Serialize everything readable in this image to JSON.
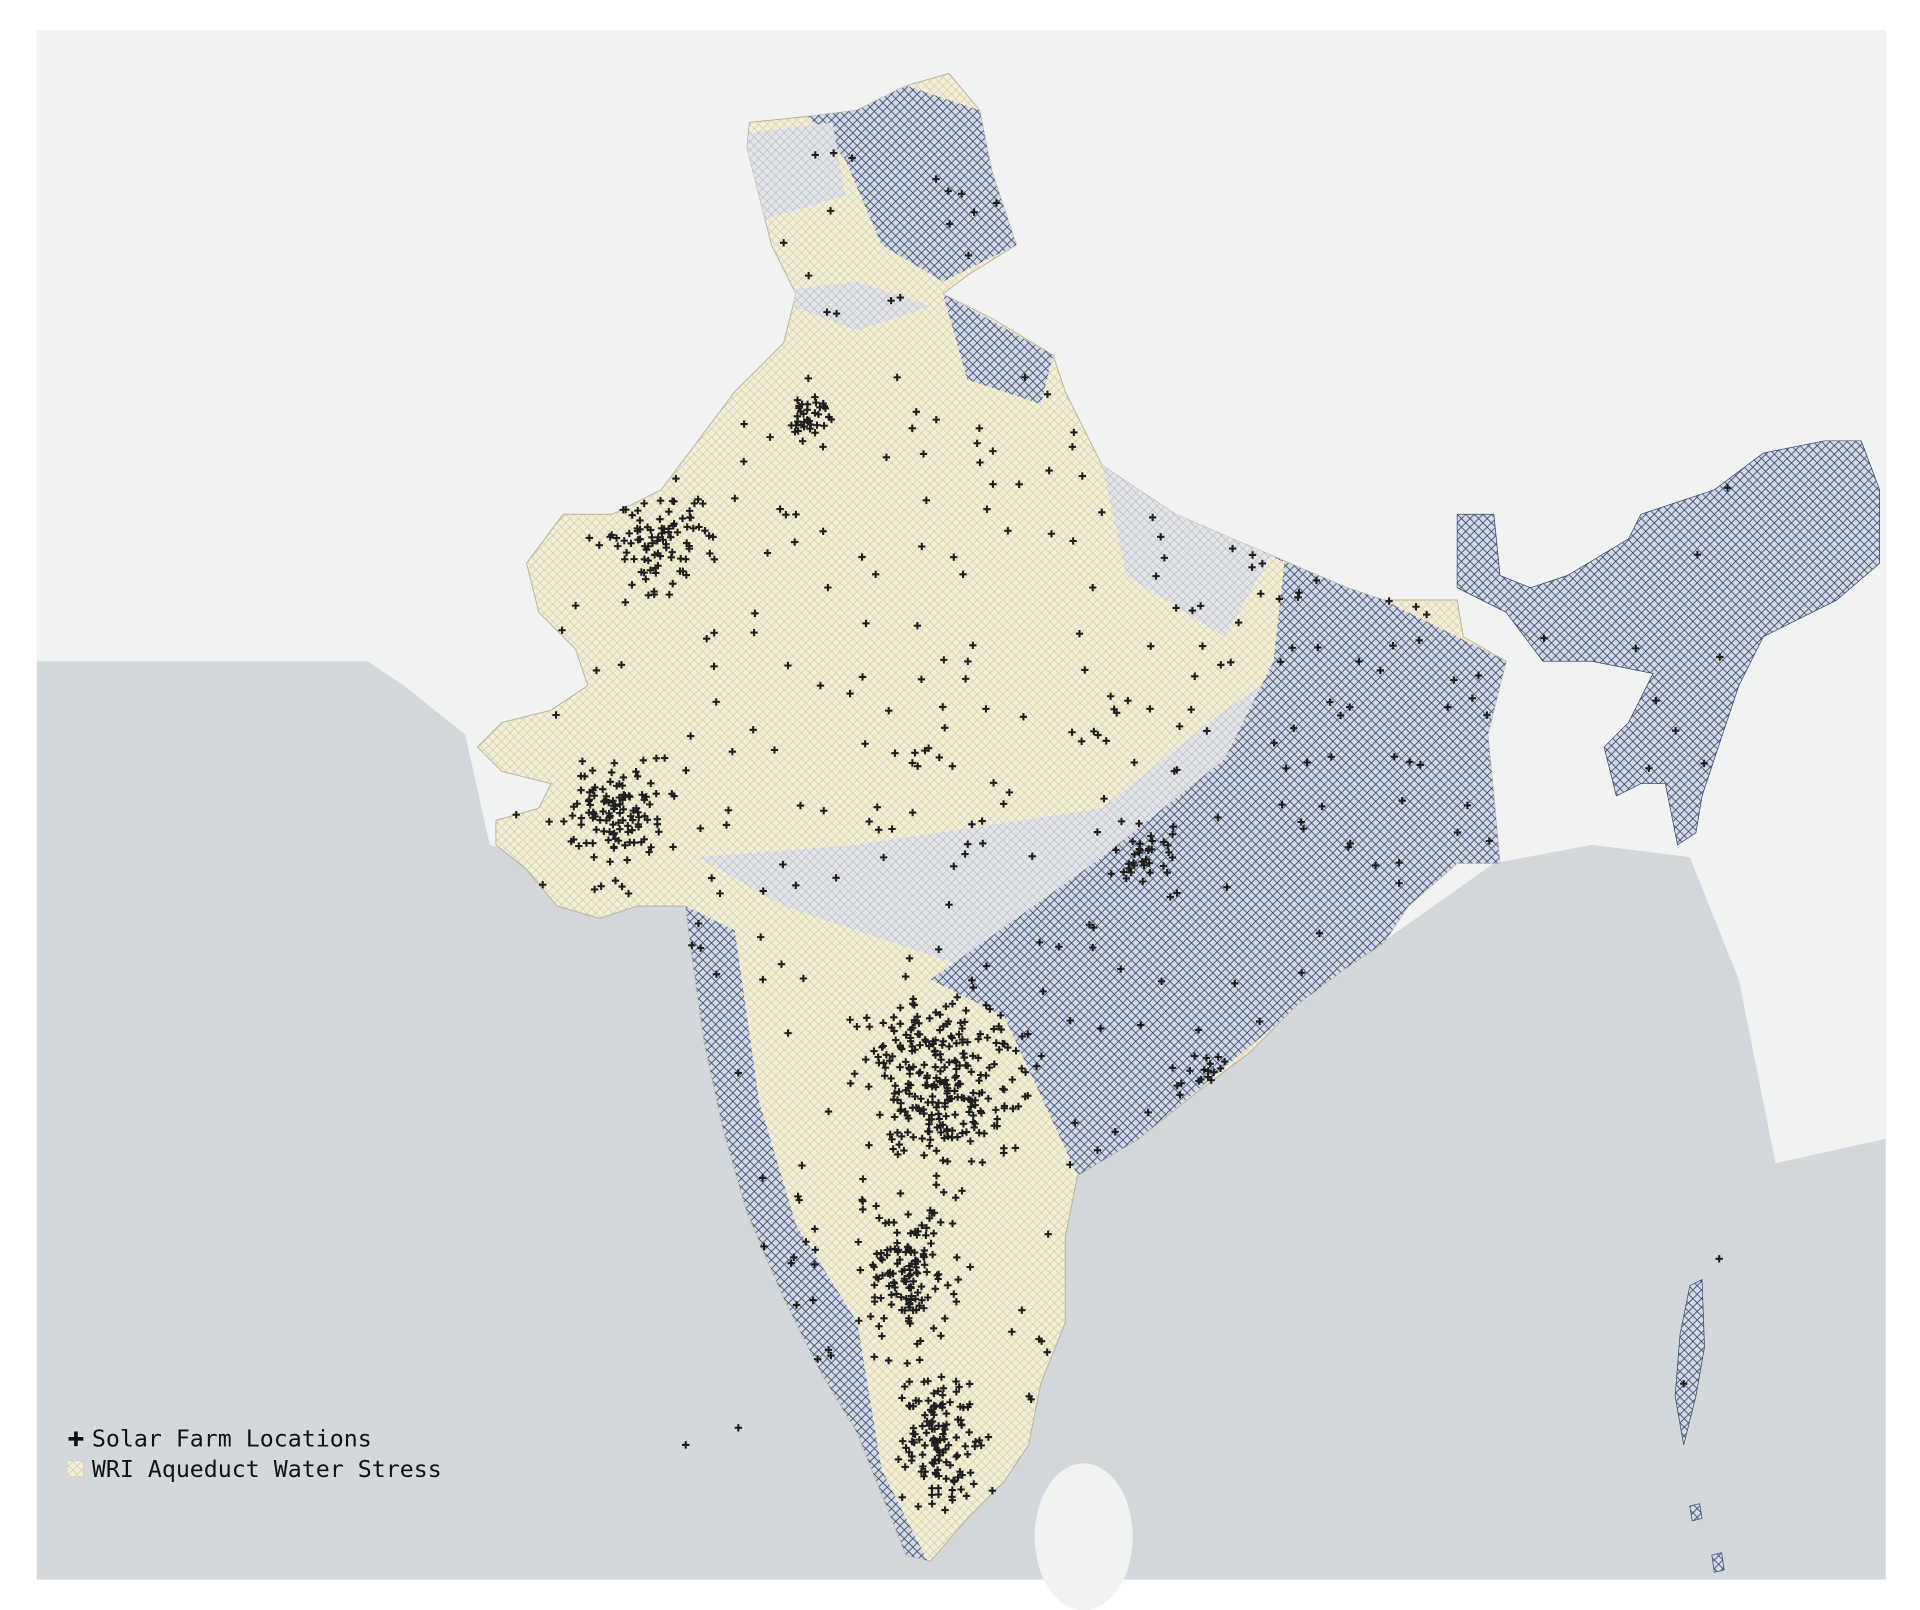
{
  "legend": {
    "items": [
      {
        "label": "Solar Farm Locations"
      },
      {
        "label": "WRI Aqueduct Water Stress"
      }
    ]
  }
}
